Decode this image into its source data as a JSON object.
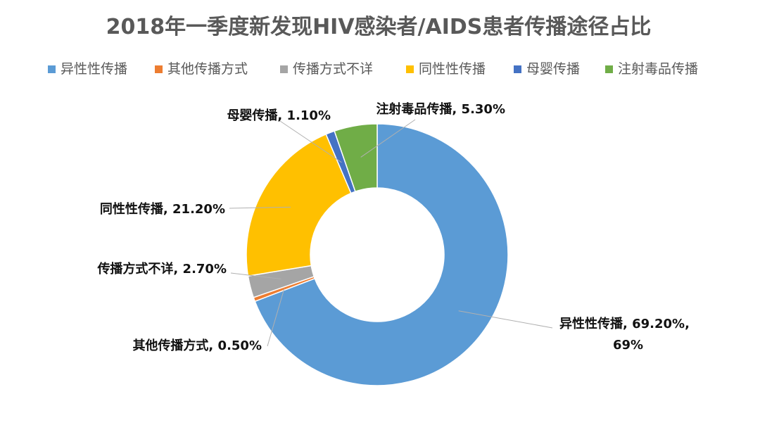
{
  "chart_data": {
    "type": "pie",
    "variant": "donut",
    "title": "2018年一季度新发现HIV感染者/AIDS患者传播途径占比",
    "legend_placement": "top",
    "series": [
      {
        "name": "异性性传播",
        "value": 69.2,
        "label": "异性性传播, 69.20%,",
        "label_line2": "69%",
        "color": "#5B9BD5"
      },
      {
        "name": "其他传播方式",
        "value": 0.5,
        "label": "其他传播方式, 0.50%",
        "color": "#ED7D31"
      },
      {
        "name": "传播方式不详",
        "value": 2.7,
        "label": "传播方式不详, 2.70%",
        "color": "#A5A5A5"
      },
      {
        "name": "同性性传播",
        "value": 21.2,
        "label": "同性性传播, 21.20%",
        "color": "#FFC000"
      },
      {
        "name": "母婴传播",
        "value": 1.1,
        "label": "母婴传播, 1.10%",
        "color": "#4472C4"
      },
      {
        "name": "注射毒品传播",
        "value": 5.3,
        "label": "注射毒品传播, 5.30%",
        "color": "#70AD47"
      }
    ]
  }
}
